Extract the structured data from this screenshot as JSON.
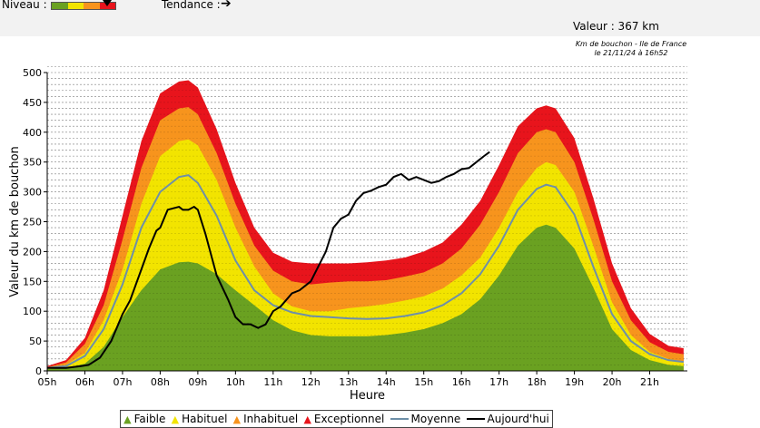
{
  "header": {
    "niveau_label": "Niveau :",
    "tendance_label": "Tendance :",
    "tendance_arrow": "➔",
    "valeur_text": "Valeur : 367 km",
    "subtitle_line1": "Km de bouchon - Ile de France",
    "subtitle_line2": "le 21/11/24 à 16h52",
    "niveau_colors": [
      "#6aa121",
      "#f2e400",
      "#f7941d",
      "#e8141c"
    ]
  },
  "chart_data": {
    "type": "area",
    "xlabel": "Heure",
    "ylabel": "Valeur du  km de bouchon",
    "xlim": [
      5,
      22
    ],
    "ylim": [
      0,
      500
    ],
    "x_ticks": [
      5,
      6,
      7,
      8,
      9,
      10,
      11,
      12,
      13,
      14,
      15,
      16,
      17,
      18,
      19,
      20,
      21
    ],
    "x_tick_labels": [
      "05h",
      "06h",
      "07h",
      "08h",
      "09h",
      "10h",
      "11h",
      "12h",
      "13h",
      "14h",
      "15h",
      "16h",
      "17h",
      "18h",
      "19h",
      "20h",
      "21h"
    ],
    "y_ticks": [
      0,
      50,
      100,
      150,
      200,
      250,
      300,
      350,
      400,
      450,
      500
    ],
    "grid": "horizontal dashed",
    "legend_position": "bottom",
    "colors": {
      "faible": "#6aa121",
      "habituel": "#f2e400",
      "inhabituel": "#f7941d",
      "exceptionnel": "#e8141c",
      "moyenne": "#6e8fa8",
      "aujourdhui": "#000000"
    },
    "x": [
      5,
      5.5,
      6,
      6.5,
      7,
      7.5,
      8,
      8.5,
      8.75,
      9,
      9.5,
      10,
      10.5,
      11,
      11.5,
      12,
      12.5,
      13,
      13.5,
      14,
      14.5,
      15,
      15.5,
      16,
      16.5,
      17,
      17.5,
      18,
      18.25,
      18.5,
      19,
      19.5,
      20,
      20.5,
      21,
      21.5,
      21.9
    ],
    "series": [
      {
        "name": "Faible",
        "values": [
          3,
          5,
          12,
          40,
          90,
          135,
          170,
          182,
          183,
          180,
          162,
          135,
          110,
          85,
          68,
          60,
          58,
          58,
          58,
          60,
          64,
          70,
          80,
          95,
          120,
          160,
          210,
          240,
          245,
          240,
          205,
          140,
          70,
          35,
          18,
          10,
          8
        ]
      },
      {
        "name": "Habituel",
        "values": [
          5,
          10,
          30,
          85,
          170,
          280,
          360,
          385,
          388,
          378,
          320,
          240,
          175,
          130,
          108,
          100,
          100,
          105,
          108,
          112,
          118,
          125,
          138,
          160,
          190,
          240,
          300,
          340,
          350,
          345,
          300,
          210,
          115,
          60,
          32,
          20,
          16
        ]
      },
      {
        "name": "Inhabituel",
        "values": [
          6,
          14,
          45,
          110,
          220,
          340,
          420,
          440,
          442,
          430,
          365,
          280,
          210,
          168,
          150,
          145,
          148,
          150,
          150,
          152,
          158,
          165,
          180,
          205,
          245,
          300,
          365,
          400,
          405,
          400,
          350,
          255,
          150,
          85,
          48,
          32,
          28
        ]
      },
      {
        "name": "Exceptionnel",
        "values": [
          8,
          18,
          55,
          135,
          260,
          385,
          465,
          485,
          487,
          475,
          405,
          315,
          240,
          198,
          183,
          180,
          180,
          180,
          182,
          185,
          190,
          200,
          215,
          245,
          285,
          345,
          410,
          440,
          445,
          440,
          390,
          290,
          180,
          105,
          62,
          42,
          38
        ]
      },
      {
        "name": "Moyenne",
        "values": [
          5,
          8,
          25,
          70,
          145,
          240,
          300,
          325,
          328,
          315,
          260,
          185,
          135,
          110,
          98,
          92,
          90,
          88,
          87,
          88,
          92,
          98,
          110,
          130,
          162,
          210,
          270,
          305,
          312,
          308,
          262,
          175,
          95,
          50,
          28,
          18,
          15
        ]
      }
    ],
    "aujourdhui": {
      "name": "Aujourd'hui",
      "x": [
        5,
        5.5,
        5.9,
        6.1,
        6.4,
        6.7,
        7,
        7.2,
        7.5,
        7.7,
        7.9,
        8,
        8.2,
        8.5,
        8.6,
        8.75,
        8.9,
        9,
        9.2,
        9.5,
        9.8,
        10,
        10.2,
        10.4,
        10.6,
        10.8,
        11,
        11.2,
        11.5,
        11.7,
        11.9,
        12,
        12.2,
        12.4,
        12.6,
        12.8,
        13,
        13.2,
        13.4,
        13.6,
        13.8,
        14,
        14.2,
        14.4,
        14.6,
        14.8,
        15,
        15.2,
        15.4,
        15.6,
        15.8,
        16,
        16.2,
        16.4,
        16.6,
        16.75
      ],
      "values": [
        5,
        5,
        8,
        10,
        22,
        50,
        95,
        118,
        170,
        205,
        235,
        240,
        270,
        275,
        270,
        270,
        275,
        270,
        230,
        160,
        120,
        90,
        78,
        78,
        72,
        78,
        100,
        108,
        130,
        135,
        145,
        150,
        175,
        200,
        240,
        255,
        262,
        285,
        298,
        302,
        308,
        312,
        325,
        330,
        320,
        325,
        320,
        315,
        318,
        325,
        330,
        338,
        340,
        350,
        360,
        367
      ]
    }
  },
  "legend": {
    "faible": "Faible",
    "habituel": "Habituel",
    "inhabituel": "Inhabituel",
    "exceptionnel": "Exceptionnel",
    "moyenne": "Moyenne",
    "aujourdhui": "Aujourd'hui"
  }
}
